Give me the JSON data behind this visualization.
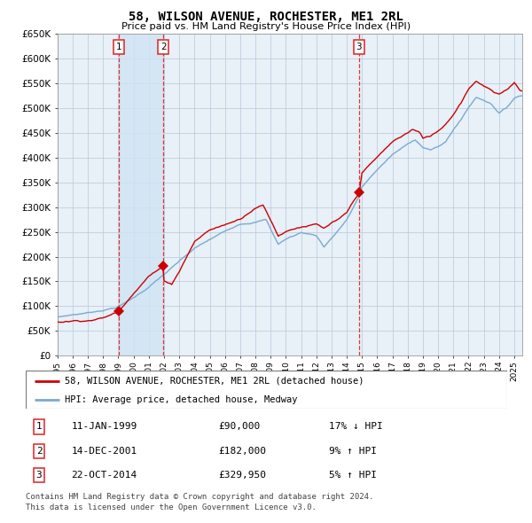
{
  "title": "58, WILSON AVENUE, ROCHESTER, ME1 2RL",
  "subtitle": "Price paid vs. HM Land Registry's House Price Index (HPI)",
  "line1_label": "58, WILSON AVENUE, ROCHESTER, ME1 2RL (detached house)",
  "line2_label": "HPI: Average price, detached house, Medway",
  "line1_color": "#cc0000",
  "line2_color": "#7aaad0",
  "plot_bg_color": "#e8f0f8",
  "grid_color": "#b8c8d8",
  "span_color": "#d0e4f4",
  "vline_color": "#dd2222",
  "purchases": [
    {
      "label": "1",
      "date": "11-JAN-1999",
      "date_num": 1999.03,
      "price": 90000,
      "hpi_rel": "17% ↓ HPI"
    },
    {
      "label": "2",
      "date": "14-DEC-2001",
      "date_num": 2001.95,
      "price": 182000,
      "hpi_rel": "9% ↑ HPI"
    },
    {
      "label": "3",
      "date": "22-OCT-2014",
      "date_num": 2014.8,
      "price": 329950,
      "hpi_rel": "5% ↑ HPI"
    }
  ],
  "ymin": 0,
  "ymax": 650000,
  "xmin": 1995.0,
  "xmax": 2025.5,
  "yticks": [
    0,
    50000,
    100000,
    150000,
    200000,
    250000,
    300000,
    350000,
    400000,
    450000,
    500000,
    550000,
    600000,
    650000
  ],
  "ytick_labels": [
    "£0",
    "£50K",
    "£100K",
    "£150K",
    "£200K",
    "£250K",
    "£300K",
    "£350K",
    "£400K",
    "£450K",
    "£500K",
    "£550K",
    "£600K",
    "£650K"
  ],
  "xtick_years": [
    1995,
    1996,
    1997,
    1998,
    1999,
    2000,
    2001,
    2002,
    2003,
    2004,
    2005,
    2006,
    2007,
    2008,
    2009,
    2010,
    2011,
    2012,
    2013,
    2014,
    2015,
    2016,
    2017,
    2018,
    2019,
    2020,
    2021,
    2022,
    2023,
    2024,
    2025
  ],
  "footer_line1": "Contains HM Land Registry data © Crown copyright and database right 2024.",
  "footer_line2": "This data is licensed under the Open Government Licence v3.0."
}
